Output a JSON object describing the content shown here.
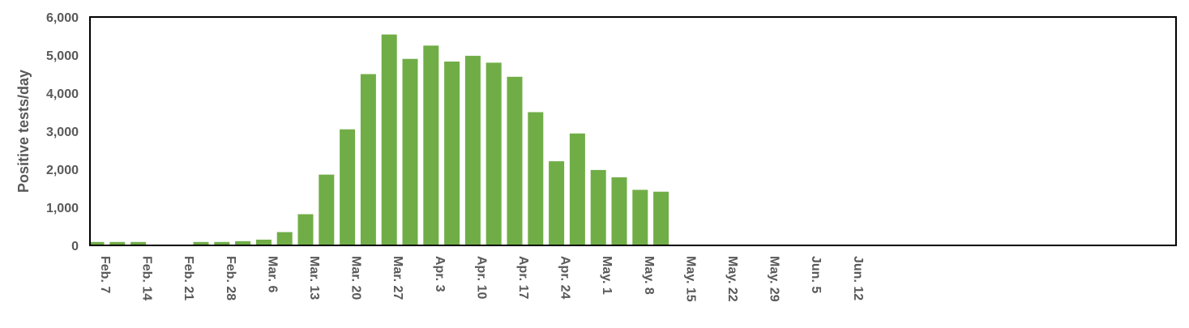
{
  "chart_data": {
    "type": "bar",
    "title": "",
    "xlabel": "",
    "ylabel": "Positive tests/day",
    "ylim": [
      0,
      6000
    ],
    "yticks": [
      0,
      1000,
      2000,
      3000,
      4000,
      5000,
      6000
    ],
    "ytick_labels": [
      "0",
      "1,000",
      "2,000",
      "3,000",
      "4,000",
      "5,000",
      "6,000"
    ],
    "grid": false,
    "color": "#70ad47",
    "categories": [
      "Feb. 7",
      "Feb. 14",
      "Feb. 21",
      "Feb. 28",
      "Mar. 6",
      "Mar. 13",
      "Mar. 20",
      "Mar. 27",
      "Apr. 3",
      "Apr. 10",
      "Apr. 17",
      "Apr. 24",
      "May. 1",
      "May. 8",
      "May. 15",
      "May. 22",
      "May. 29",
      "Jun. 5",
      "Jun. 12"
    ],
    "bars": [
      {
        "x": "Feb. 7",
        "value": 90
      },
      {
        "x": "Feb. 10.5",
        "value": 90
      },
      {
        "x": "Feb. 14",
        "value": 90
      },
      {
        "x": "Feb. 17.5",
        "value": 0
      },
      {
        "x": "Feb. 21",
        "value": 0
      },
      {
        "x": "Feb. 24.5",
        "value": 90
      },
      {
        "x": "Feb. 28",
        "value": 90
      },
      {
        "x": "Mar. 2.5",
        "value": 110
      },
      {
        "x": "Mar. 6",
        "value": 150
      },
      {
        "x": "Mar. 9.5",
        "value": 350
      },
      {
        "x": "Mar. 13",
        "value": 820
      },
      {
        "x": "Mar. 16.5",
        "value": 1860
      },
      {
        "x": "Mar. 20",
        "value": 3050
      },
      {
        "x": "Mar. 23.5",
        "value": 4500
      },
      {
        "x": "Mar. 27",
        "value": 5540
      },
      {
        "x": "Mar. 30.5",
        "value": 4900
      },
      {
        "x": "Apr. 3",
        "value": 5250
      },
      {
        "x": "Apr. 6.5",
        "value": 4830
      },
      {
        "x": "Apr. 10",
        "value": 4980
      },
      {
        "x": "Apr. 13.5",
        "value": 4800
      },
      {
        "x": "Apr. 17",
        "value": 4430
      },
      {
        "x": "Apr. 20.5",
        "value": 3500
      },
      {
        "x": "Apr. 24",
        "value": 2210
      },
      {
        "x": "Apr. 27.5",
        "value": 2940
      },
      {
        "x": "May. 1",
        "value": 1980
      },
      {
        "x": "May. 4.5",
        "value": 1790
      },
      {
        "x": "May. 8",
        "value": 1460
      },
      {
        "x": "May. 11.5",
        "value": 1410
      }
    ]
  }
}
